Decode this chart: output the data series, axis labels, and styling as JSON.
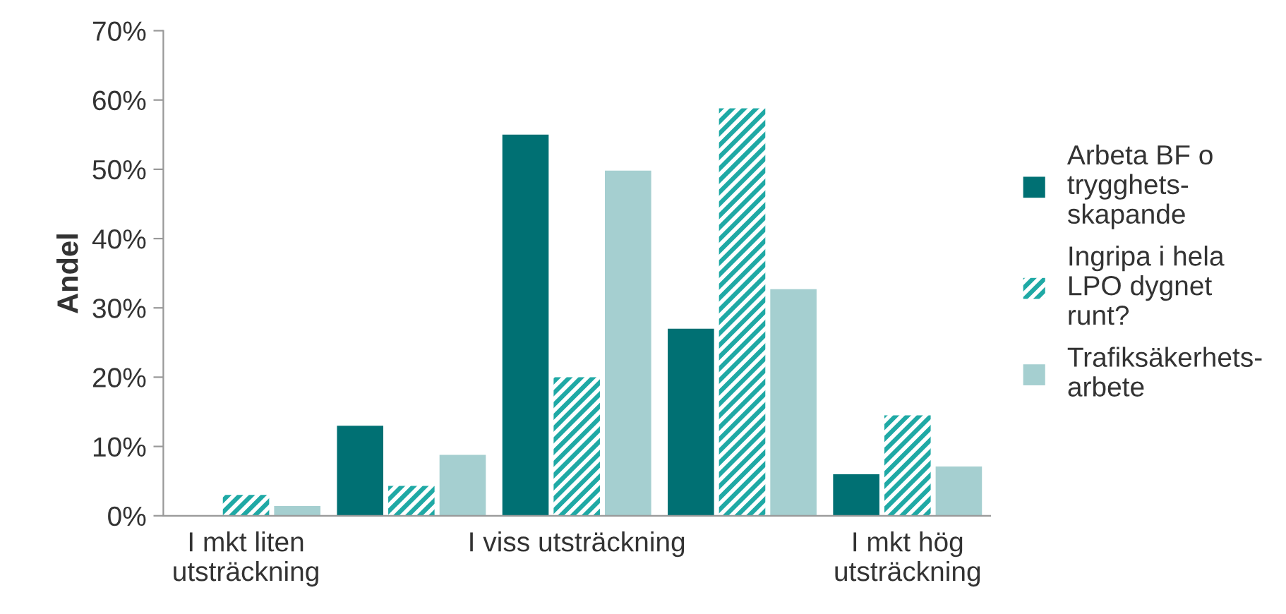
{
  "chart_data": {
    "type": "bar",
    "ylabel": "Andel",
    "categories": [
      "I mkt liten\nutsträckning",
      null,
      "I viss utsträckning",
      null,
      "I mkt hög\nutsträckning"
    ],
    "series": [
      {
        "name": "Arbeta BF o\ntrygghets-\nskapande",
        "color": "#007073",
        "values": [
          0,
          13,
          55,
          27,
          6
        ]
      },
      {
        "name": "Ingripa i hela\nLPO dygnet\nrunt?",
        "color": "#1fa9a5",
        "values": [
          3,
          4.3,
          20,
          58.8,
          14.5
        ]
      },
      {
        "name": "Trafiksäkerhets-\narbete",
        "color": "#a5cfd0",
        "values": [
          1.4,
          8.8,
          49.8,
          32.7,
          7.1
        ]
      }
    ],
    "ylim": [
      0,
      70
    ],
    "yticks": [
      {
        "value": 0,
        "label": "0%"
      },
      {
        "value": 10,
        "label": "10%"
      },
      {
        "value": 20,
        "label": "20%"
      },
      {
        "value": 30,
        "label": "30%"
      },
      {
        "value": 40,
        "label": "40%"
      },
      {
        "value": 50,
        "label": "50%"
      },
      {
        "value": 60,
        "label": "60%"
      },
      {
        "value": 70,
        "label": "70%"
      }
    ],
    "grid": false,
    "legend": "right"
  }
}
